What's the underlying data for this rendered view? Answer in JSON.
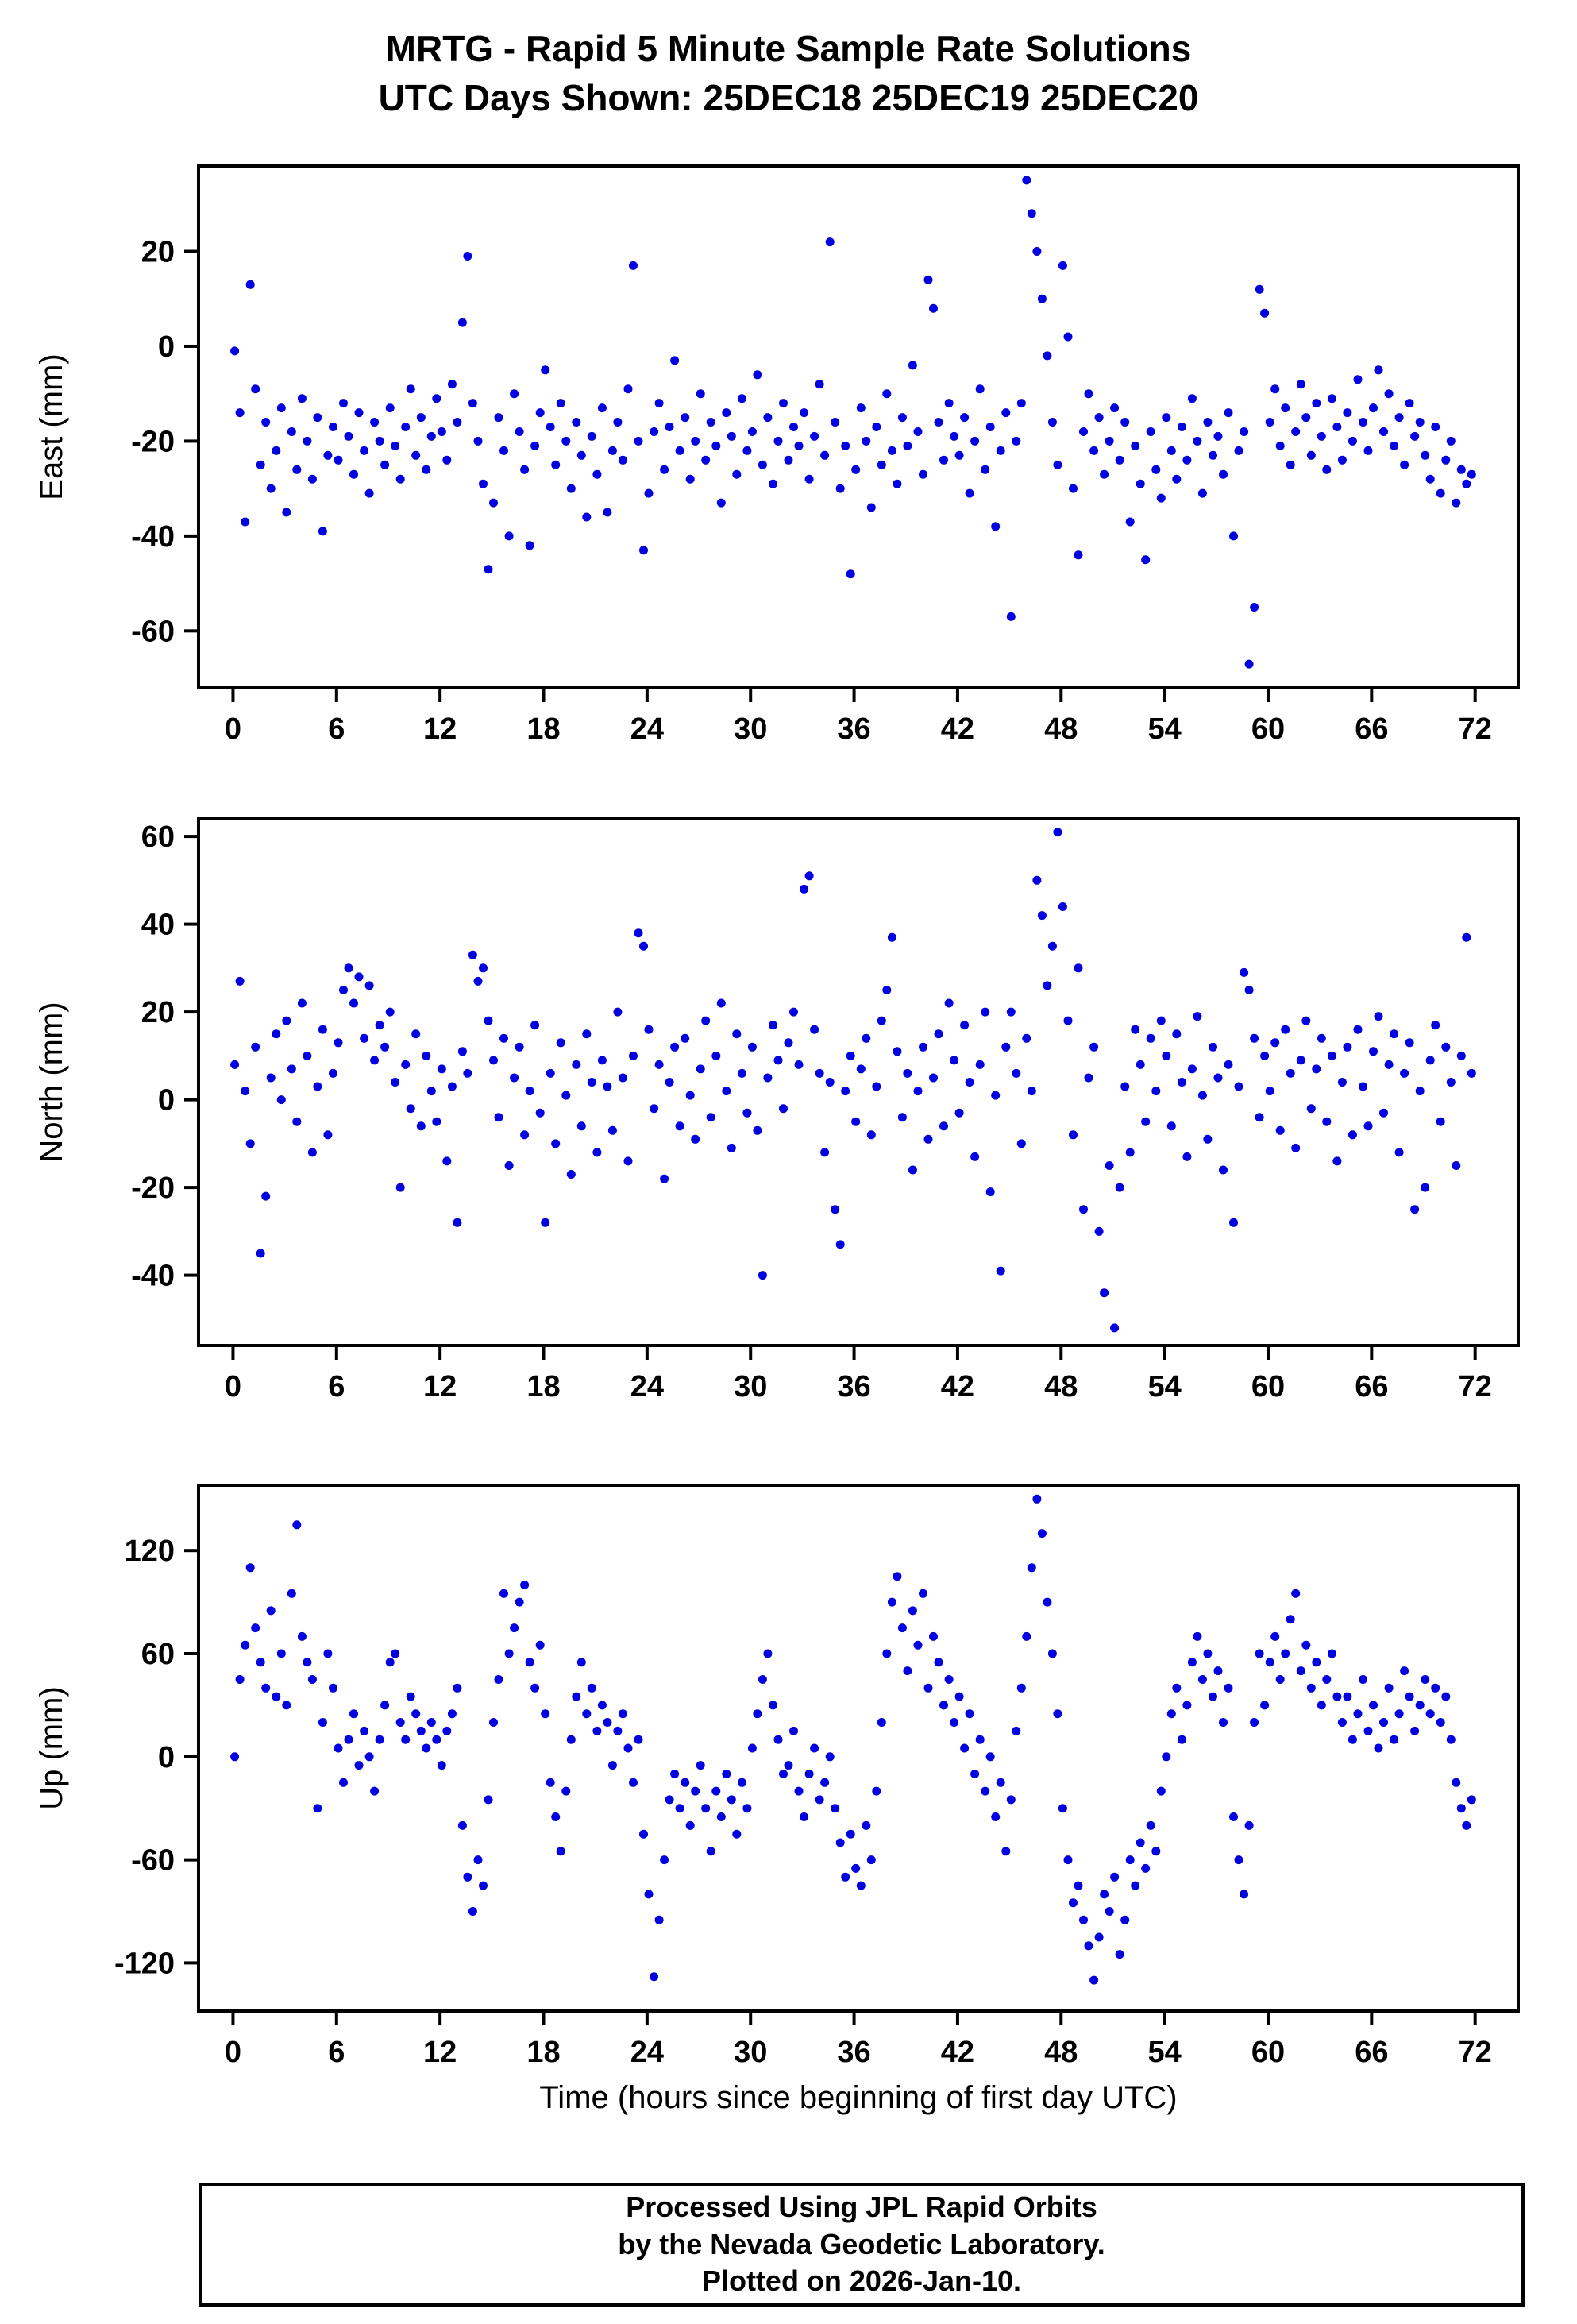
{
  "title": {
    "line1": "MRTG - Rapid 5 Minute Sample Rate Solutions",
    "line2": "UTC Days Shown:  25DEC18 25DEC19 25DEC20"
  },
  "xlabel": "Time (hours since beginning of first day UTC)",
  "footer": {
    "line1": "Processed Using JPL Rapid Orbits",
    "line2": "by the Nevada Geodetic Laboratory.",
    "line3": "Plotted on 2026-Jan-10."
  },
  "point_color": "#0000e0",
  "chart_data": {
    "type": "scatter",
    "title": "MRTG - Rapid 5 Minute Sample Rate Solutions",
    "subtitle": "UTC Days Shown:  25DEC18 25DEC19 25DEC20",
    "x_unit": "hours since beginning of first day UTC",
    "x_start": 0.1,
    "x_step": 0.3,
    "xlim": [
      -2,
      74.5
    ],
    "xticks": [
      0,
      6,
      12,
      18,
      24,
      30,
      36,
      42,
      48,
      54,
      60,
      66,
      72
    ],
    "legend": "none",
    "grid": false,
    "panels": [
      {
        "ylabel": "East (mm)",
        "ylim": [
          -72,
          38
        ],
        "yticks": [
          20,
          0,
          -20,
          -40,
          -60
        ],
        "values": [
          -1,
          -14,
          -37,
          13,
          -9,
          -25,
          -16,
          -30,
          -22,
          -13,
          -35,
          -18,
          -26,
          -11,
          -20,
          -28,
          -15,
          -39,
          -23,
          -17,
          -24,
          -12,
          -19,
          -27,
          -14,
          -22,
          -31,
          -16,
          -20,
          -25,
          -13,
          -21,
          -28,
          -17,
          -9,
          -23,
          -15,
          -26,
          -19,
          -11,
          -18,
          -24,
          -8,
          -16,
          5,
          19,
          -12,
          -20,
          -29,
          -47,
          -33,
          -15,
          -22,
          -40,
          -10,
          -18,
          -26,
          -42,
          -21,
          -14,
          -5,
          -17,
          -25,
          -12,
          -20,
          -30,
          -16,
          -23,
          -36,
          -19,
          -27,
          -13,
          -35,
          -22,
          -16,
          -24,
          -9,
          17,
          -20,
          -43,
          -31,
          -18,
          -12,
          -26,
          -17,
          -3,
          -22,
          -15,
          -28,
          -20,
          -10,
          -24,
          -16,
          -21,
          -33,
          -14,
          -19,
          -27,
          -11,
          -22,
          -18,
          -6,
          -25,
          -15,
          -29,
          -20,
          -12,
          -24,
          -17,
          -21,
          -14,
          -28,
          -19,
          -8,
          -23,
          22,
          -16,
          -30,
          -21,
          -48,
          -26,
          -13,
          -20,
          -34,
          -17,
          -25,
          -10,
          -22,
          -29,
          -15,
          -21,
          -4,
          -18,
          -27,
          14,
          8,
          -16,
          -24,
          -12,
          -19,
          -23,
          -15,
          -31,
          -20,
          -9,
          -26,
          -17,
          -38,
          -22,
          -14,
          -57,
          -20,
          -12,
          35,
          28,
          20,
          10,
          -2,
          -16,
          -25,
          17,
          2,
          -30,
          -44,
          -18,
          -10,
          -22,
          -15,
          -27,
          -20,
          -13,
          -24,
          -16,
          -37,
          -21,
          -29,
          -45,
          -18,
          -26,
          -32,
          -15,
          -22,
          -28,
          -17,
          -24,
          -11,
          -20,
          -31,
          -16,
          -23,
          -19,
          -27,
          -14,
          -40,
          -22,
          -18,
          -67,
          -55,
          12,
          7,
          -16,
          -9,
          -21,
          -13,
          -25,
          -18,
          -8,
          -15,
          -23,
          -12,
          -19,
          -26,
          -11,
          -17,
          -24,
          -14,
          -20,
          -7,
          -16,
          -22,
          -13,
          -5,
          -18,
          -10,
          -21,
          -15,
          -25,
          -12,
          -19,
          -16,
          -23,
          -28,
          -17,
          -31,
          -24,
          -20,
          -33,
          -26,
          -29,
          -27
        ]
      },
      {
        "ylabel": "North (mm)",
        "ylim": [
          -56,
          64
        ],
        "yticks": [
          60,
          40,
          20,
          0,
          -20,
          -40
        ],
        "values": [
          8,
          27,
          2,
          -10,
          12,
          -35,
          -22,
          5,
          15,
          0,
          18,
          7,
          -5,
          22,
          10,
          -12,
          3,
          16,
          -8,
          6,
          13,
          25,
          30,
          22,
          28,
          14,
          26,
          9,
          17,
          12,
          20,
          4,
          -20,
          8,
          -2,
          15,
          -6,
          10,
          2,
          -5,
          7,
          -14,
          3,
          -28,
          11,
          6,
          33,
          27,
          30,
          18,
          9,
          -4,
          14,
          -15,
          5,
          12,
          -8,
          2,
          17,
          -3,
          -28,
          6,
          -10,
          13,
          1,
          -17,
          8,
          -6,
          15,
          4,
          -12,
          9,
          3,
          -7,
          20,
          5,
          -14,
          10,
          38,
          35,
          16,
          -2,
          8,
          -18,
          4,
          12,
          -6,
          14,
          1,
          -9,
          7,
          18,
          -4,
          10,
          22,
          2,
          -11,
          15,
          6,
          -3,
          12,
          -7,
          -40,
          5,
          17,
          9,
          -2,
          13,
          20,
          8,
          48,
          51,
          16,
          6,
          -12,
          4,
          -25,
          -33,
          2,
          10,
          -5,
          7,
          14,
          -8,
          3,
          18,
          25,
          37,
          11,
          -4,
          6,
          -16,
          2,
          12,
          -9,
          5,
          15,
          -6,
          22,
          9,
          -3,
          17,
          4,
          -13,
          8,
          20,
          -21,
          1,
          -39,
          12,
          20,
          6,
          -10,
          14,
          2,
          50,
          42,
          26,
          35,
          61,
          44,
          18,
          -8,
          30,
          -25,
          5,
          12,
          -30,
          -44,
          -15,
          -52,
          -20,
          3,
          -12,
          16,
          8,
          -5,
          14,
          2,
          18,
          10,
          -6,
          15,
          4,
          -13,
          7,
          19,
          1,
          -9,
          12,
          5,
          -16,
          8,
          -28,
          3,
          29,
          25,
          14,
          -4,
          10,
          2,
          13,
          -7,
          16,
          6,
          -11,
          9,
          18,
          -2,
          7,
          14,
          -5,
          10,
          -14,
          4,
          12,
          -8,
          16,
          3,
          -6,
          11,
          19,
          -3,
          8,
          15,
          -12,
          6,
          13,
          -25,
          2,
          -20,
          9,
          17,
          -5,
          12,
          4,
          -15,
          10,
          37,
          6
        ]
      },
      {
        "ylabel": "Up (mm)",
        "ylim": [
          -148,
          158
        ],
        "yticks": [
          120,
          60,
          0,
          -60,
          -120
        ],
        "values": [
          0,
          45,
          65,
          110,
          75,
          55,
          40,
          85,
          35,
          60,
          30,
          95,
          135,
          70,
          55,
          45,
          -30,
          20,
          60,
          40,
          5,
          -15,
          10,
          25,
          -5,
          15,
          0,
          -20,
          10,
          30,
          55,
          60,
          20,
          10,
          35,
          25,
          15,
          5,
          20,
          10,
          -5,
          15,
          25,
          40,
          -40,
          -70,
          -90,
          -60,
          -75,
          -25,
          20,
          45,
          95,
          60,
          75,
          90,
          100,
          55,
          40,
          65,
          25,
          -15,
          -35,
          -55,
          -20,
          10,
          35,
          55,
          25,
          40,
          15,
          30,
          20,
          -5,
          15,
          25,
          5,
          -15,
          10,
          -45,
          -80,
          -128,
          -95,
          -60,
          -25,
          -10,
          -30,
          -15,
          -40,
          -20,
          -5,
          -30,
          -55,
          -20,
          -35,
          -10,
          -25,
          -45,
          -15,
          -30,
          5,
          25,
          45,
          60,
          30,
          10,
          -10,
          -5,
          15,
          -20,
          -35,
          -10,
          5,
          -25,
          -15,
          0,
          -30,
          -50,
          -70,
          -45,
          -65,
          -75,
          -40,
          -60,
          -20,
          20,
          60,
          90,
          105,
          75,
          50,
          85,
          65,
          95,
          40,
          70,
          55,
          30,
          45,
          20,
          35,
          5,
          25,
          -10,
          10,
          -20,
          0,
          -35,
          -15,
          -55,
          -25,
          15,
          40,
          70,
          110,
          150,
          130,
          90,
          60,
          25,
          -30,
          -60,
          -85,
          -75,
          -95,
          -110,
          -130,
          -105,
          -80,
          -90,
          -70,
          -115,
          -95,
          -60,
          -75,
          -50,
          -65,
          -40,
          -55,
          -20,
          0,
          25,
          40,
          10,
          30,
          55,
          70,
          45,
          60,
          35,
          50,
          20,
          40,
          -35,
          -60,
          -80,
          -40,
          20,
          60,
          30,
          55,
          70,
          45,
          60,
          80,
          95,
          50,
          65,
          40,
          55,
          30,
          45,
          60,
          35,
          20,
          35,
          10,
          25,
          45,
          15,
          30,
          5,
          20,
          40,
          10,
          25,
          50,
          35,
          15,
          30,
          45,
          25,
          40,
          20,
          35,
          10,
          -15,
          -30,
          -40,
          -25
        ]
      }
    ]
  }
}
